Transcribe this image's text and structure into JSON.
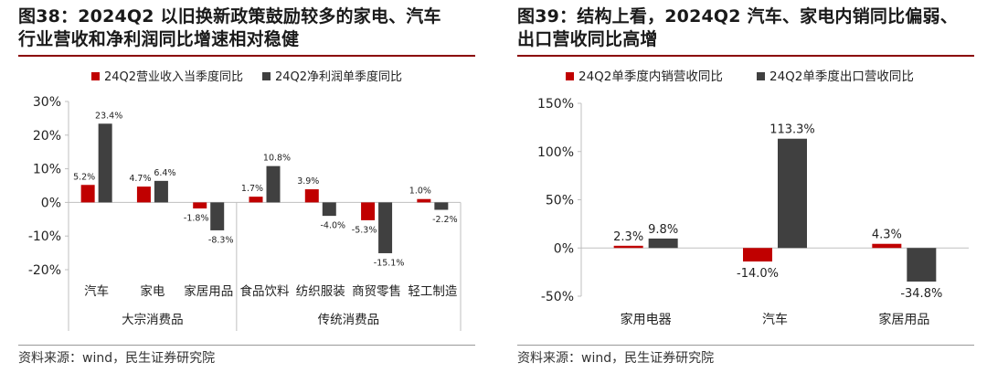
{
  "charts": [
    {
      "figure_title": "图38：2024Q2 以旧换新政策鼓励较多的家电、汽车行业营收和净利润同比增速相对稳健",
      "title_lines": [
        "图38：2024Q2 以旧换新政策鼓励较多的家电、汽车",
        "行业营收和净利润同比增速相对稳健"
      ],
      "source": "资料来源：wind，民生证券研究院"
    },
    {
      "figure_title": "图39：结构上看，2024Q2 汽车、家电内销同比偏弱、出口营收同比高增",
      "title_lines": [
        "图39：结构上看，2024Q2 汽车、家电内销同比偏弱、",
        "出口营收同比高增"
      ],
      "source": "资料来源：wind，民生证券研究院"
    }
  ],
  "colors": {
    "red": "#c00000",
    "dark": "#404040",
    "axis": "#bfbfbf",
    "title_rule": "#8b0000"
  },
  "chart_data": [
    {
      "type": "bar",
      "title": "",
      "xlabel": "",
      "ylabel": "",
      "ylim": [
        -0.2,
        0.3
      ],
      "yticks": [
        -0.2,
        -0.1,
        0,
        0.1,
        0.2,
        0.3
      ],
      "ytick_labels": [
        "-20%",
        "-10%",
        "0%",
        "10%",
        "20%",
        "30%"
      ],
      "legend_position": "top",
      "grid": false,
      "categories": [
        "汽车",
        "家电",
        "家居用品",
        "食品饮料",
        "纺织服装",
        "商贸零售",
        "轻工制造"
      ],
      "groups": [
        {
          "label": "大宗消费品",
          "categories": [
            "汽车",
            "家电",
            "家居用品"
          ]
        },
        {
          "label": "传统消费品",
          "categories": [
            "食品饮料",
            "纺织服装",
            "商贸零售",
            "轻工制造"
          ]
        }
      ],
      "series": [
        {
          "name": "24Q2营业收入当季度同比",
          "color": "#c00000",
          "values": [
            0.052,
            0.047,
            -0.018,
            0.017,
            0.039,
            -0.053,
            0.01
          ],
          "labels": [
            "5.2%",
            "4.7%",
            "-1.8%",
            "1.7%",
            "3.9%",
            "-5.3%",
            "1.0%"
          ]
        },
        {
          "name": "24Q2净利润单季度同比",
          "color": "#404040",
          "values": [
            0.234,
            0.064,
            -0.083,
            0.108,
            -0.04,
            -0.151,
            -0.022
          ],
          "labels": [
            "23.4%",
            "6.4%",
            "-8.3%",
            "10.8%",
            "-4.0%",
            "-15.1%",
            "-2.2%"
          ]
        }
      ]
    },
    {
      "type": "bar",
      "title": "",
      "xlabel": "",
      "ylabel": "",
      "ylim": [
        -0.5,
        1.5
      ],
      "yticks": [
        -0.5,
        0,
        0.5,
        1.0,
        1.5
      ],
      "ytick_labels": [
        "-50%",
        "0%",
        "50%",
        "100%",
        "150%"
      ],
      "legend_position": "top",
      "grid": false,
      "categories": [
        "家用电器",
        "汽车",
        "家居用品"
      ],
      "series": [
        {
          "name": "24Q2单季度内销营收同比",
          "color": "#c00000",
          "values": [
            0.023,
            -0.14,
            0.043
          ],
          "labels": [
            "2.3%",
            "-14.0%",
            "4.3%"
          ]
        },
        {
          "name": "24Q2单季度出口营收同比",
          "color": "#404040",
          "values": [
            0.098,
            1.133,
            -0.348
          ],
          "labels": [
            "9.8%",
            "113.3%",
            "-34.8%"
          ]
        }
      ]
    }
  ]
}
